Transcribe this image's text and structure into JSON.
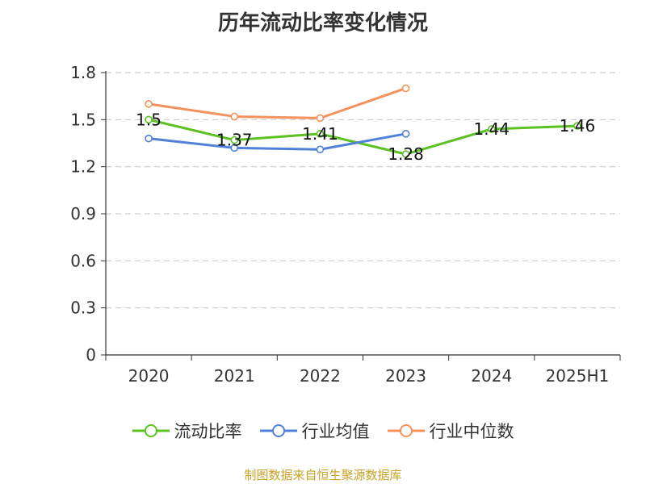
{
  "chart_data": {
    "type": "line",
    "title": "历年流动比率变化情况",
    "categories": [
      "2020",
      "2021",
      "2022",
      "2023",
      "2024",
      "2025H1"
    ],
    "ylim": [
      0,
      1.8
    ],
    "yticks": [
      "0",
      "0.3",
      "0.6",
      "0.9",
      "1.2",
      "1.5",
      "1.8"
    ],
    "grid": true,
    "legend_position": "bottom",
    "series": [
      {
        "name": "流动比率",
        "color": "#5cc222",
        "values": [
          1.5,
          1.37,
          1.41,
          1.28,
          1.44,
          1.46
        ],
        "labels": [
          "1.5",
          "1.37",
          "1.41",
          "1.28",
          "1.44",
          "1.46"
        ]
      },
      {
        "name": "行业均值",
        "color": "#4f81d9",
        "values": [
          1.38,
          1.32,
          1.31,
          1.41,
          null,
          null
        ]
      },
      {
        "name": "行业中位数",
        "color": "#f5915a",
        "values": [
          1.6,
          1.52,
          1.51,
          1.7,
          null,
          null
        ]
      }
    ]
  },
  "footer": {
    "source": "制图数据来自恒生聚源数据库"
  }
}
